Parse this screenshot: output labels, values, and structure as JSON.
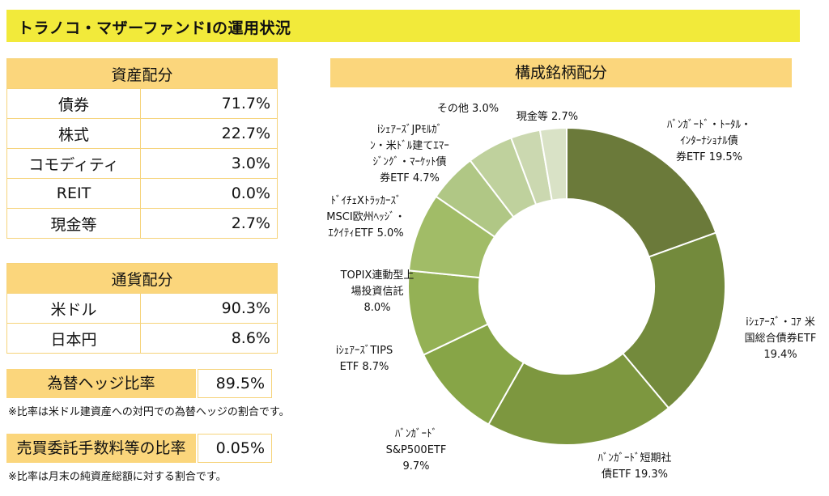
{
  "title": "トラノコ・マザーファンドⅠの運用状況",
  "asset_allocation": {
    "header": "資産配分",
    "rows": [
      {
        "label": "債券",
        "value": "71.7%"
      },
      {
        "label": "株式",
        "value": "22.7%"
      },
      {
        "label": "コモディティ",
        "value": "3.0%"
      },
      {
        "label": "REIT",
        "value": "0.0%"
      },
      {
        "label": "現金等",
        "value": "2.7%"
      }
    ]
  },
  "currency_allocation": {
    "header": "通貨配分",
    "rows": [
      {
        "label": "米ドル",
        "value": "90.3%"
      },
      {
        "label": "日本円",
        "value": "8.6%"
      }
    ]
  },
  "hedge": {
    "label": "為替ヘッジ比率",
    "value": "89.5%",
    "note": "※比率は米ドル建資産への対円での為替ヘッジの割合です。"
  },
  "fee": {
    "label": "売買委託手数料等の比率",
    "value": "0.05%",
    "note": "※比率は月末の純資産総額に対する割合です。"
  },
  "chart_data": {
    "type": "pie",
    "title": "構成銘柄配分",
    "donut": true,
    "slices": [
      {
        "label": "バンガード・トータル・インターナショナル債券ETF",
        "label_lines": [
          "ﾊﾞﾝｶﾞｰﾄﾞ・ﾄｰﾀﾙ・",
          "ｲﾝﾀｰﾅｼｮﾅﾙ債",
          "券ETF 19.5%"
        ],
        "value": 19.5,
        "color": "#6b7a3a"
      },
      {
        "label": "iシェアーズ・コア 米国総合債券ETF",
        "label_lines": [
          "iｼｪｱｰｽﾞ・ｺｱ 米",
          "国総合債券ETF",
          "19.4%"
        ],
        "value": 19.4,
        "color": "#738a3c"
      },
      {
        "label": "バンガード短期社債ETF",
        "label_lines": [
          "ﾊﾞﾝｶﾞｰﾄﾞ短期社",
          "債ETF 19.3%"
        ],
        "value": 19.3,
        "color": "#7d973f"
      },
      {
        "label": "バンガードS&P500ETF",
        "label_lines": [
          "ﾊﾞﾝｶﾞｰﾄﾞ",
          "S&P500ETF",
          "9.7%"
        ],
        "value": 9.7,
        "color": "#87a547"
      },
      {
        "label": "iシェアーズTIPS ETF",
        "label_lines": [
          "iｼｪｱｰｽﾞTIPS",
          "ETF 8.7%"
        ],
        "value": 8.7,
        "color": "#94b155"
      },
      {
        "label": "TOPIX連動型上場投資信託",
        "label_lines": [
          "TOPIX連動型上",
          "場投資信託",
          "8.0%"
        ],
        "value": 8.0,
        "color": "#a1bc67"
      },
      {
        "label": "ドイチェXトラッカーズ MSCI欧州ヘッジ・エクイティETF",
        "label_lines": [
          "ﾄﾞｲﾁｪXﾄﾗｯｶｰｽﾞ",
          "MSCI欧州ﾍｯｼﾞ・",
          "ｴｸｲﾃｨETF 5.0%"
        ],
        "value": 5.0,
        "color": "#b0c785"
      },
      {
        "label": "iシェアーズJPモルガン・米ドル建てエマージング・マーケット債券ETF",
        "label_lines": [
          "iｼｪｱｰｽﾞJPﾓﾙｶﾞ",
          "ﾝ・米ﾄﾞﾙ建てｴﾏｰ",
          "ｼﾞﾝｸﾞ・ﾏｰｹｯﾄ債",
          "券ETF 4.7%"
        ],
        "value": 4.7,
        "color": "#bfd19d"
      },
      {
        "label": "その他",
        "label_lines": [
          "その他 3.0%"
        ],
        "value": 3.0,
        "color": "#cbd8b0"
      },
      {
        "label": "現金等",
        "label_lines": [
          "現金等 2.7%"
        ],
        "value": 2.7,
        "color": "#d9e2c6"
      }
    ]
  }
}
